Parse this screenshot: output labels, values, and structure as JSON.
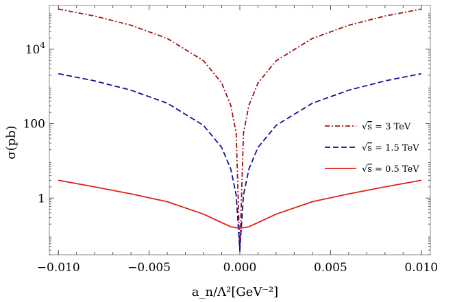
{
  "chart_data": {
    "type": "line",
    "title": "",
    "xlabel": "a_n/Λ²[GeV⁻²]",
    "ylabel": "σ(pb)",
    "xlim": [
      -0.0105,
      0.0105
    ],
    "ylim": [
      0.03,
      150000
    ],
    "yscale": "log",
    "grid": false,
    "legend_position": "right",
    "x_ticks": [
      {
        "value": -0.01,
        "label": "−0.010"
      },
      {
        "value": -0.005,
        "label": "−0.005"
      },
      {
        "value": 0,
        "label": "0.000"
      },
      {
        "value": 0.005,
        "label": "0.005"
      },
      {
        "value": 0.01,
        "label": "0.010"
      }
    ],
    "y_ticks": [
      {
        "value": 1,
        "label": "1"
      },
      {
        "value": 100,
        "label": "100"
      },
      {
        "value": 10000,
        "label": "10",
        "sup": "4"
      }
    ],
    "x": [
      -0.01,
      -0.008,
      -0.006,
      -0.004,
      -0.002,
      -0.001,
      -0.0005,
      -0.0002,
      0,
      0.0002,
      0.0005,
      0.001,
      0.002,
      0.004,
      0.006,
      0.008,
      0.01
    ],
    "series": [
      {
        "name": "√s = 3 TeV",
        "legend_prefix": "√",
        "legend_radicand": "s",
        "legend_rest": " = 3 TeV",
        "color": "#a01010",
        "dash": "7,3,2,3",
        "values": [
          120000,
          78000,
          44000,
          19500,
          4900,
          1240,
          310,
          55,
          0.035,
          55,
          310,
          1240,
          4900,
          19500,
          44000,
          78000,
          120000
        ]
      },
      {
        "name": "√s = 1.5 TeV",
        "legend_prefix": "√",
        "legend_radicand": "s",
        "legend_rest": " = 1.5 TeV",
        "color": "#10109a",
        "dash": "8,4",
        "values": [
          2200,
          1410,
          795,
          355,
          90,
          23,
          6,
          1.2,
          0.04,
          1.2,
          6,
          23,
          90,
          355,
          795,
          1410,
          2200
        ]
      },
      {
        "name": "√s = 0.5 TeV",
        "legend_prefix": "√",
        "legend_radicand": "s",
        "legend_rest": " = 0.5 TeV",
        "color": "#e0201a",
        "dash": "",
        "values": [
          3.0,
          2.0,
          1.3,
          0.8,
          0.37,
          0.22,
          0.17,
          0.16,
          0.155,
          0.16,
          0.17,
          0.22,
          0.37,
          0.8,
          1.3,
          2.0,
          3.0
        ]
      }
    ]
  }
}
